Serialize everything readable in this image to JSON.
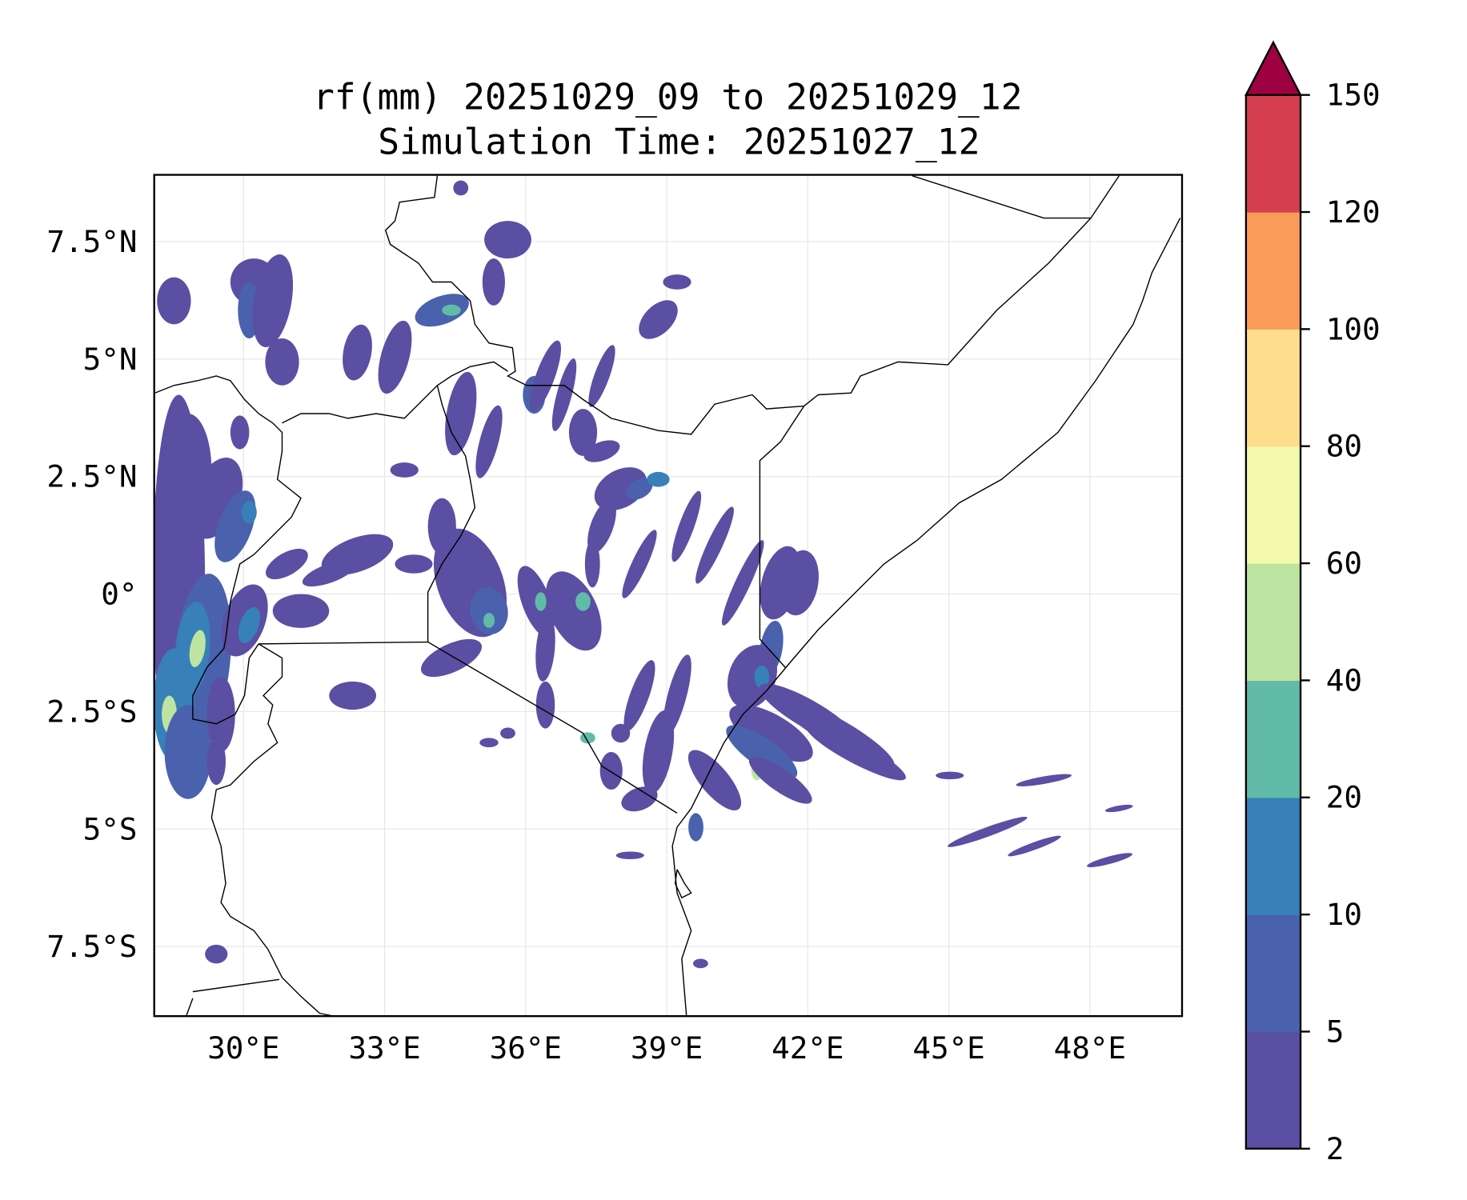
{
  "chart_data": {
    "type": "heatmap",
    "title": "rf(mm) 20251029_09 to 20251029_12",
    "subtitle": "Simulation Time: 20251027_12",
    "variable": "rf(mm)",
    "extent": {
      "lon": [
        28.1,
        50.0
      ],
      "lat": [
        -9.0,
        9.0
      ]
    },
    "x_ticks": [
      {
        "value": 30,
        "label": "30°E"
      },
      {
        "value": 33,
        "label": "33°E"
      },
      {
        "value": 36,
        "label": "36°E"
      },
      {
        "value": 39,
        "label": "39°E"
      },
      {
        "value": 42,
        "label": "42°E"
      },
      {
        "value": 45,
        "label": "45°E"
      },
      {
        "value": 48,
        "label": "48°E"
      }
    ],
    "y_ticks": [
      {
        "value": 7.5,
        "label": "7.5°N"
      },
      {
        "value": 5,
        "label": "5°N"
      },
      {
        "value": 2.5,
        "label": "2.5°N"
      },
      {
        "value": 0,
        "label": "0°"
      },
      {
        "value": -2.5,
        "label": "2.5°S"
      },
      {
        "value": -5,
        "label": "5°S"
      },
      {
        "value": -7.5,
        "label": "7.5°S"
      }
    ],
    "grid": true,
    "colorbar": {
      "placement": "right",
      "levels": [
        "2",
        "5",
        "10",
        "20",
        "40",
        "60",
        "80",
        "100",
        "120",
        "150"
      ],
      "colors": [
        "#5a4fa2",
        "#4a62ad",
        "#3780b9",
        "#61bba8",
        "#bde4a1",
        "#f3faad",
        "#fcde8c",
        "#f99c5a",
        "#d53e4f"
      ],
      "extend_color": "#9e0142",
      "extend": "max"
    }
  }
}
